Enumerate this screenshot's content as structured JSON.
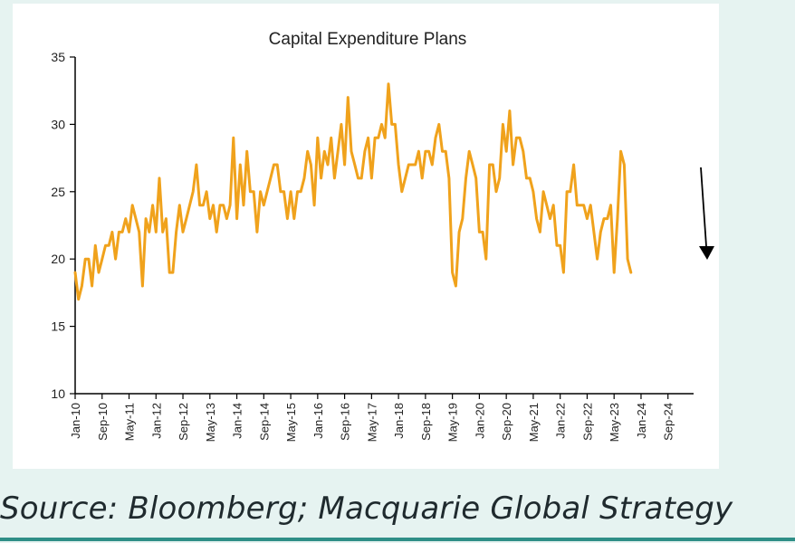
{
  "chart_data": {
    "type": "line",
    "title": "Capital Expenditure Plans",
    "xlabel": "",
    "ylabel": "",
    "ylim": [
      10,
      35
    ],
    "yticks": [
      10,
      15,
      20,
      25,
      30,
      35
    ],
    "xticks": [
      "Jan-10",
      "Sep-10",
      "May-11",
      "Jan-12",
      "Sep-12",
      "May-13",
      "Jan-14",
      "Sep-14",
      "May-15",
      "Jan-16",
      "Sep-16",
      "May-17",
      "Jan-18",
      "Sep-18",
      "May-19",
      "Jan-20",
      "Sep-20",
      "May-21",
      "Jan-22",
      "Sep-22",
      "May-23",
      "Jan-24",
      "Sep-24"
    ],
    "x_start": "Jan-10",
    "x_step": "month",
    "grid": false,
    "legend": "none",
    "colors": {
      "line": "#f0a21c",
      "arrow": "#000000",
      "axis": "#000000"
    },
    "annotation": "downward arrow",
    "series": [
      {
        "values": [
          19,
          17,
          18,
          20,
          20,
          18,
          21,
          19,
          20,
          21,
          21,
          22,
          20,
          22,
          22,
          23,
          22,
          24,
          23,
          22,
          18,
          23,
          22,
          24,
          22,
          26,
          22,
          23,
          19,
          19,
          22,
          24,
          22,
          23,
          24,
          25,
          27,
          24,
          24,
          25,
          23,
          24,
          22,
          24,
          24,
          23,
          24,
          29,
          23,
          27,
          24,
          28,
          25,
          25,
          22,
          25,
          24,
          25,
          26,
          27,
          27,
          25,
          25,
          23,
          25,
          23,
          25,
          25,
          26,
          28,
          27,
          24,
          29,
          26,
          28,
          27,
          29,
          26,
          28,
          30,
          27,
          32,
          28,
          27,
          26,
          26,
          28,
          29,
          26,
          29,
          29,
          30,
          29,
          33,
          30,
          30,
          27,
          25,
          26,
          27,
          27,
          27,
          28,
          26,
          28,
          28,
          27,
          29,
          30,
          28,
          28,
          26,
          19,
          18,
          22,
          23,
          26,
          28,
          27,
          26,
          22,
          22,
          20,
          27,
          27,
          25,
          26,
          30,
          28,
          31,
          27,
          29,
          29,
          28,
          26,
          26,
          25,
          23,
          22,
          25,
          24,
          23,
          24,
          21,
          21,
          19,
          25,
          25,
          27,
          24,
          24,
          24,
          23,
          24,
          22,
          20,
          22,
          23,
          23,
          24,
          19,
          23,
          28,
          27,
          20,
          19
        ]
      }
    ]
  },
  "source": "Source: Bloomberg; Macquarie Global Strategy"
}
